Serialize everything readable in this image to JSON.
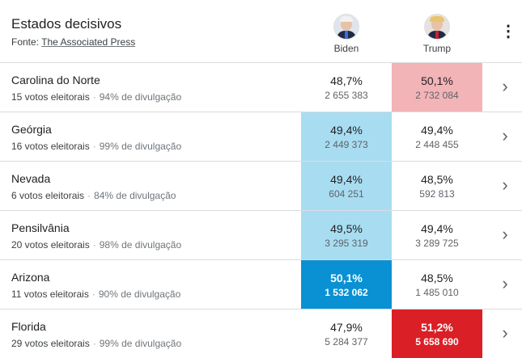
{
  "header": {
    "title": "Estados decisivos",
    "source_label": "Fonte: ",
    "source_link": "The Associated Press",
    "more_icon": "more-vert-icon"
  },
  "candidates": {
    "biden": {
      "name": "Biden"
    },
    "trump": {
      "name": "Trump"
    }
  },
  "colors": {
    "light_blue": "#a8dcf1",
    "light_red": "#f3b4b8",
    "blue_winner": "#0a91d4",
    "red_winner": "#da1f26"
  },
  "rows": [
    {
      "state": "Carolina do Norte",
      "electoral": "15 votos eleitorais",
      "reporting": "94% de divulgação",
      "biden_pct": "48,7%",
      "biden_votes": "2 655 383",
      "trump_pct": "50,1%",
      "trump_votes": "2 732 084",
      "biden_style": "none",
      "trump_style": "lead-light-red"
    },
    {
      "state": "Geórgia",
      "electoral": "16 votos eleitorais",
      "reporting": "99% de divulgação",
      "biden_pct": "49,4%",
      "biden_votes": "2 449 373",
      "trump_pct": "49,4%",
      "trump_votes": "2 448 455",
      "biden_style": "lead-light-blue",
      "trump_style": "none"
    },
    {
      "state": "Nevada",
      "electoral": "6 votos eleitorais",
      "reporting": "84% de divulgação",
      "biden_pct": "49,4%",
      "biden_votes": "604 251",
      "trump_pct": "48,5%",
      "trump_votes": "592 813",
      "biden_style": "lead-light-blue",
      "trump_style": "none"
    },
    {
      "state": "Pensilvânia",
      "electoral": "20 votos eleitorais",
      "reporting": "98% de divulgação",
      "biden_pct": "49,5%",
      "biden_votes": "3 295 319",
      "trump_pct": "49,4%",
      "trump_votes": "3 289 725",
      "biden_style": "lead-light-blue",
      "trump_style": "none"
    },
    {
      "state": "Arizona",
      "electoral": "11 votos eleitorais",
      "reporting": "90% de divulgação",
      "biden_pct": "50,1%",
      "biden_votes": "1 532 062",
      "trump_pct": "48,5%",
      "trump_votes": "1 485 010",
      "biden_style": "win-blue",
      "trump_style": "none"
    },
    {
      "state": "Florida",
      "electoral": "29 votos eleitorais",
      "reporting": "99% de divulgação",
      "biden_pct": "47,9%",
      "biden_votes": "5 284 377",
      "trump_pct": "51,2%",
      "trump_votes": "5 658 690",
      "biden_style": "none",
      "trump_style": "win-red"
    }
  ]
}
